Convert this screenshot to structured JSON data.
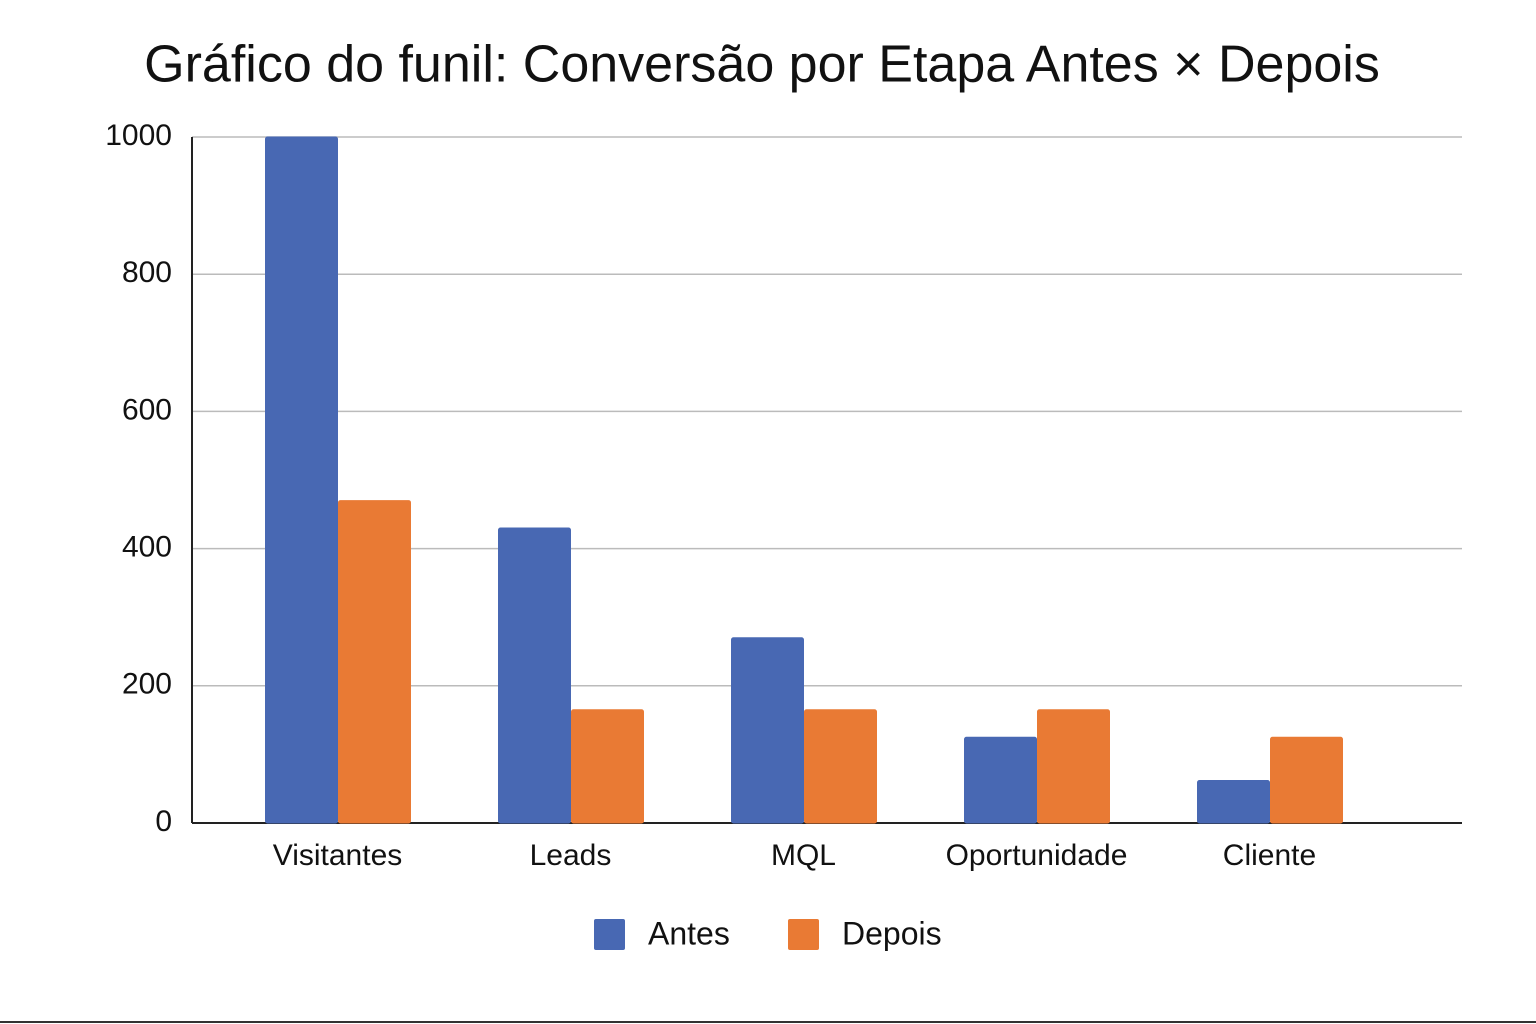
{
  "chart_data": {
    "type": "bar",
    "title": "Gráfico do funil: Conversão por Etapa Antes × Depois",
    "categories": [
      "Visitantes",
      "Leads",
      "MQL",
      "Oportunidade",
      "Cliente"
    ],
    "series": [
      {
        "name": "Antes",
        "color": "#4868b3",
        "values": [
          1000,
          430,
          270,
          125,
          62
        ]
      },
      {
        "name": "Depois",
        "color": "#e97a34",
        "values": [
          470,
          165,
          165,
          165,
          125
        ]
      }
    ],
    "ylim": [
      0,
      1000
    ],
    "yticks": [
      0,
      200,
      400,
      600,
      800,
      1000
    ],
    "grid": true,
    "legend": "bottom"
  }
}
